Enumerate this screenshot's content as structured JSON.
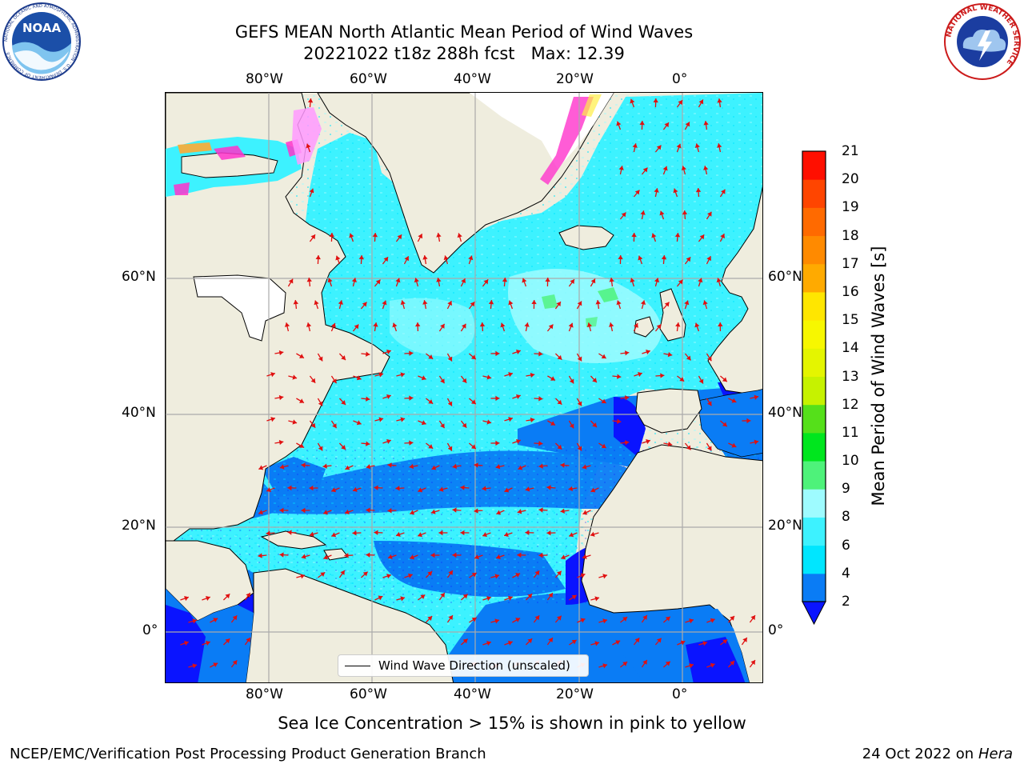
{
  "title": {
    "line1": "GEFS MEAN North Atlantic Mean Period of Wind Waves",
    "line2": "20221022 t18z 288h fcst   Max: 12.39"
  },
  "map": {
    "lon_labels": [
      "80°W",
      "60°W",
      "40°W",
      "20°W",
      "0°"
    ],
    "lat_labels_left": [
      "60°N",
      "40°N",
      "20°N",
      "0°"
    ],
    "lat_labels_right": [
      "60°N",
      "40°N",
      "20°N",
      "0°"
    ],
    "legend_label": "Wind Wave Direction (unscaled)",
    "land_color": "#efedde",
    "arrow_color": "#e01010",
    "ice_colors": [
      "#ff33cc",
      "#ff99ff",
      "#ffaa33",
      "#ffee44"
    ]
  },
  "colorbar": {
    "label": "Mean Period of Wind Waves [s]",
    "ticks": [
      "21",
      "20",
      "19",
      "18",
      "17",
      "16",
      "15",
      "14",
      "13",
      "12",
      "11",
      "10",
      "9",
      "8",
      "6",
      "4",
      "2"
    ],
    "bands": [
      {
        "from": 2,
        "to": 4,
        "color": "#0a7cf5"
      },
      {
        "from": 4,
        "to": 6,
        "color": "#00e6ff"
      },
      {
        "from": 6,
        "to": 8,
        "color": "#3df2ff"
      },
      {
        "from": 8,
        "to": 9,
        "color": "#9efbff"
      },
      {
        "from": 9,
        "to": 10,
        "color": "#4ef27a"
      },
      {
        "from": 10,
        "to": 11,
        "color": "#00e61e"
      },
      {
        "from": 11,
        "to": 12,
        "color": "#55e01a"
      },
      {
        "from": 12,
        "to": 13,
        "color": "#c6f200"
      },
      {
        "from": 13,
        "to": 14,
        "color": "#e4f500"
      },
      {
        "from": 14,
        "to": 15,
        "color": "#f7f700"
      },
      {
        "from": 15,
        "to": 16,
        "color": "#ffe600"
      },
      {
        "from": 16,
        "to": 17,
        "color": "#ffaa00"
      },
      {
        "from": 17,
        "to": 18,
        "color": "#ff8a00"
      },
      {
        "from": 18,
        "to": 19,
        "color": "#ff6a00"
      },
      {
        "from": 19,
        "to": 20,
        "color": "#ff4500"
      },
      {
        "from": 20,
        "to": 21,
        "color": "#ff0f00"
      }
    ],
    "under_color": "#0a14ff"
  },
  "notes": {
    "ice": "Sea Ice Concentration > 15% is shown in pink to yellow"
  },
  "footer": {
    "left": "NCEP/EMC/Verification Post Processing Product Generation Branch",
    "date": "24 Oct 2022 on ",
    "machine": "Hera"
  },
  "logos": {
    "noaa_text": "NOAA",
    "noaa_ring": "NATIONAL OCEANIC AND ATMOSPHERIC ADMINISTRATION · U.S. DEPARTMENT OF COMMERCE",
    "nws_ring": "NATIONAL WEATHER SERVICE"
  }
}
